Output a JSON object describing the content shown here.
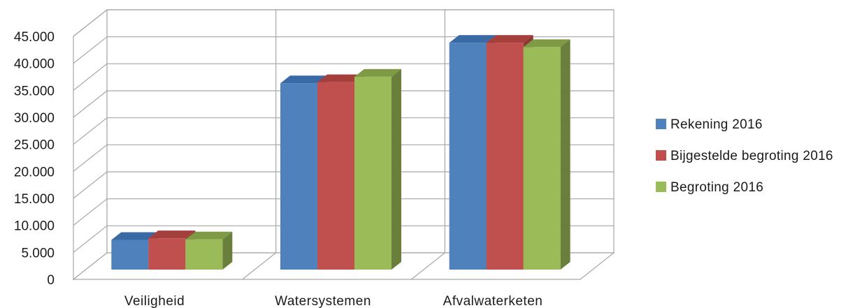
{
  "chart_data": {
    "type": "bar",
    "style": "3d-clustered-column",
    "title": "",
    "xlabel": "",
    "ylabel": "",
    "ylim": [
      0,
      45000
    ],
    "yticks": [
      "0",
      "5.000",
      "10.000",
      "15.000",
      "20.000",
      "25.000",
      "30.000",
      "35.000",
      "40.000",
      "45.000"
    ],
    "categories": [
      "Veiligheid",
      "Watersystemen",
      "Afvalwaterketen"
    ],
    "series": [
      {
        "name": "Rekening 2016",
        "values": [
          5500,
          34500,
          42000
        ],
        "color": "#4f81bd",
        "side_color": "#385d8a",
        "top_color": "#3a6aa5"
      },
      {
        "name": "Bijgestelde begroting 2016",
        "values": [
          5800,
          34700,
          42000
        ],
        "color": "#c0504d",
        "side_color": "#8c3836",
        "top_color": "#a43f3c"
      },
      {
        "name": "Begroting 2016",
        "values": [
          5600,
          35700,
          41200
        ],
        "color": "#9bbb59",
        "side_color": "#6a7f3b",
        "top_color": "#7e9a45"
      }
    ],
    "grid": true,
    "legend_position": "right"
  }
}
